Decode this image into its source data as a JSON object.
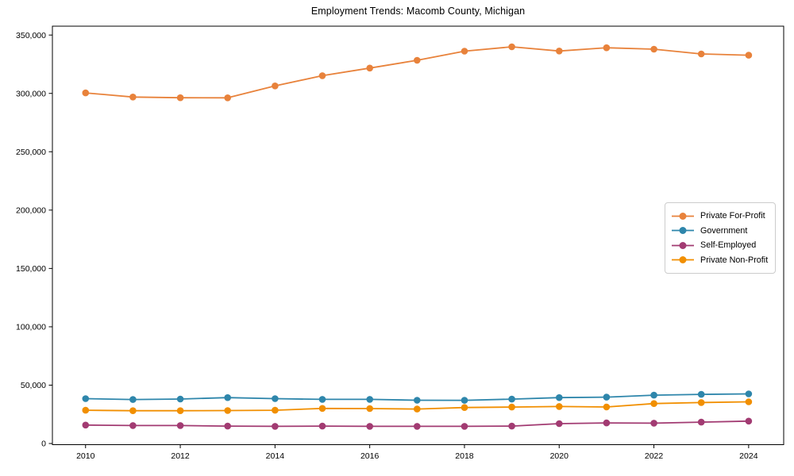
{
  "chart_data": {
    "type": "line",
    "title": "Employment Trends: Macomb County, Michigan",
    "x": [
      2010,
      2011,
      2012,
      2013,
      2014,
      2015,
      2016,
      2017,
      2018,
      2019,
      2020,
      2021,
      2022,
      2023,
      2024
    ],
    "series": [
      {
        "name": "Private For-Profit",
        "color": "#E8823B",
        "values": [
          300400,
          296900,
          296300,
          296200,
          306400,
          315200,
          321700,
          328400,
          336200,
          339900,
          336300,
          339100,
          337900,
          333800,
          332700
        ]
      },
      {
        "name": "Government",
        "color": "#2E86AB",
        "values": [
          38400,
          37700,
          38100,
          39300,
          38400,
          37800,
          37800,
          37100,
          37000,
          38000,
          39300,
          39700,
          41400,
          42100,
          42500
        ]
      },
      {
        "name": "Self-Employed",
        "color": "#A23B72",
        "values": [
          15800,
          15400,
          15400,
          14900,
          14700,
          14900,
          14700,
          14700,
          14700,
          14900,
          17000,
          17600,
          17400,
          18300,
          19200
        ]
      },
      {
        "name": "Private Non-Profit",
        "color": "#F18F01",
        "values": [
          28500,
          28100,
          28100,
          28200,
          28500,
          30100,
          29900,
          29500,
          30800,
          31200,
          31700,
          31300,
          34200,
          35100,
          35700
        ]
      }
    ],
    "xlabel": "",
    "ylabel": "",
    "xticks": [
      2010,
      2012,
      2014,
      2016,
      2018,
      2020,
      2022,
      2024
    ],
    "xtick_labels": [
      "2010",
      "2012",
      "2014",
      "2016",
      "2018",
      "2020",
      "2022",
      "2024"
    ],
    "yticks": [
      0,
      50000,
      100000,
      150000,
      200000,
      250000,
      300000,
      350000
    ],
    "ytick_labels": [
      "0",
      "50,000",
      "100,000",
      "150,000",
      "200,000",
      "250,000",
      "300,000",
      "350,000"
    ],
    "xlim": [
      2009.3,
      2024.74
    ],
    "ylim": [
      -1000,
      357600
    ],
    "grid": false,
    "legend_position": "center right",
    "axis_color": "#000000",
    "background": "#ffffff"
  }
}
